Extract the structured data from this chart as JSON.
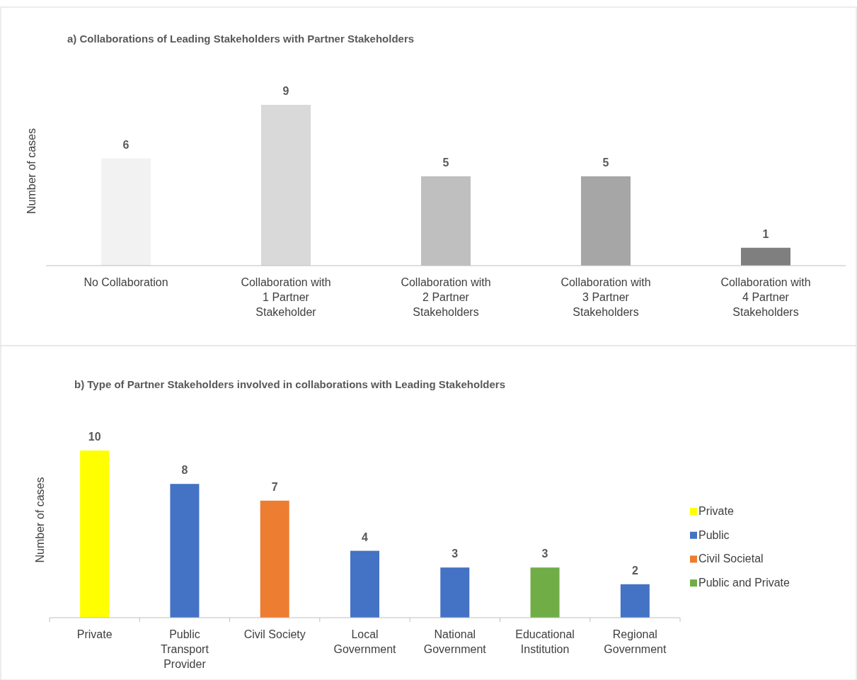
{
  "chart_data": [
    {
      "type": "bar",
      "title": "a) Collaborations of Leading Stakeholders with Partner Stakeholders",
      "ylabel": "Number of cases",
      "categories": [
        "No Collaboration",
        "Collaboration with 1 Partner Stakeholder",
        "Collaboration with 2 Partner Stakeholders",
        "Collaboration with 3 Partner Stakeholders",
        "Collaboration with 4 Partner Stakeholders"
      ],
      "values": [
        6,
        9,
        5,
        5,
        1
      ],
      "colors": [
        "#f2f2f2",
        "#d9d9d9",
        "#bfbfbf",
        "#a6a6a6",
        "#7f7f7f"
      ],
      "data_labels": true,
      "legend": false
    },
    {
      "type": "bar",
      "title": "b) Type of Partner Stakeholders involved in collaborations with Leading Stakeholders",
      "ylabel": "Number of cases",
      "categories": [
        "Private",
        "Public Transport Provider",
        "Civil Society",
        "Local Government",
        "National Government",
        "Educational Institution",
        "Regional Government"
      ],
      "stacked": true,
      "series": [
        {
          "name": "Private",
          "color": "#ffff00",
          "values": [
            10,
            null,
            null,
            null,
            null,
            null,
            null
          ]
        },
        {
          "name": "Public",
          "color": "#4472c4",
          "values": [
            null,
            8,
            null,
            4,
            3,
            null,
            2
          ]
        },
        {
          "name": "Civil Societal",
          "color": "#ed7d31",
          "values": [
            null,
            null,
            7,
            null,
            null,
            null,
            null
          ]
        },
        {
          "name": "Public and Private",
          "color": "#70ad47",
          "values": [
            null,
            null,
            null,
            null,
            null,
            3,
            null
          ]
        }
      ],
      "data_labels": true,
      "legend": "right"
    }
  ]
}
